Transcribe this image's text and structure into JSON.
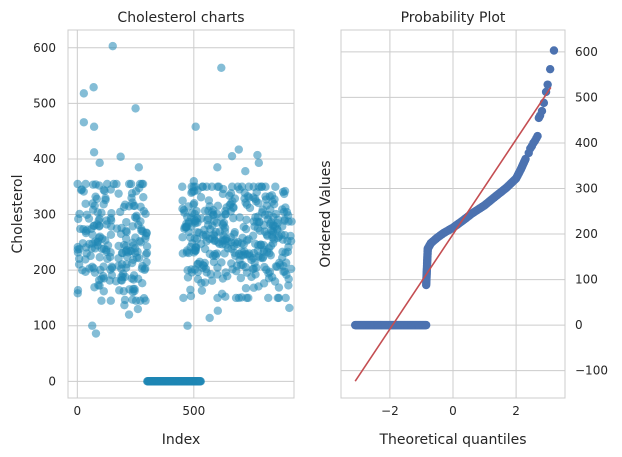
{
  "figure": {
    "background": "#ffffff"
  },
  "chart_data": [
    {
      "type": "scatter",
      "title": "Cholesterol charts",
      "xlabel": "Index",
      "ylabel": "Cholesterol",
      "xlim": [
        -40,
        930
      ],
      "ylim": [
        -30,
        632
      ],
      "xticks": [
        0,
        500
      ],
      "yticks": [
        0,
        100,
        200,
        300,
        400,
        500,
        600
      ],
      "color": "#1f86b4",
      "alpha": 0.55,
      "outliers": [
        {
          "x": 152,
          "y": 603
        },
        {
          "x": 28,
          "y": 518
        },
        {
          "x": 70,
          "y": 529
        },
        {
          "x": 250,
          "y": 491
        },
        {
          "x": 28,
          "y": 466
        },
        {
          "x": 72,
          "y": 458
        },
        {
          "x": 72,
          "y": 412
        },
        {
          "x": 96,
          "y": 393
        },
        {
          "x": 186,
          "y": 404
        },
        {
          "x": 264,
          "y": 385
        },
        {
          "x": 618,
          "y": 564
        },
        {
          "x": 508,
          "y": 458
        },
        {
          "x": 500,
          "y": 360
        },
        {
          "x": 494,
          "y": 341
        },
        {
          "x": 693,
          "y": 417
        },
        {
          "x": 664,
          "y": 405
        },
        {
          "x": 773,
          "y": 407
        },
        {
          "x": 779,
          "y": 393
        },
        {
          "x": 601,
          "y": 385
        },
        {
          "x": 721,
          "y": 378
        },
        {
          "x": 64,
          "y": 100
        },
        {
          "x": 80,
          "y": 86
        },
        {
          "x": 473,
          "y": 100
        },
        {
          "x": 603,
          "y": 127
        },
        {
          "x": 222,
          "y": 120
        },
        {
          "x": 568,
          "y": 114
        },
        {
          "x": 910,
          "y": 132
        },
        {
          "x": 202,
          "y": 137
        },
        {
          "x": 260,
          "y": 130
        }
      ],
      "clusters": [
        {
          "x_range": [
            0,
            300
          ],
          "y_range": [
            160,
            350
          ],
          "count": 210
        },
        {
          "x_range": [
            450,
            920
          ],
          "y_range": [
            165,
            345
          ],
          "count": 360
        }
      ],
      "zero_block": {
        "x_range": [
          300,
          530
        ],
        "y": 0,
        "count": 172
      }
    },
    {
      "type": "scatter",
      "title": "Probability Plot",
      "xlabel": "Theoretical quantiles",
      "ylabel": "Ordered Values",
      "xlim": [
        -3.55,
        3.55
      ],
      "ylim": [
        -160,
        648
      ],
      "xticks": [
        -2,
        0,
        2
      ],
      "yticks": [
        -100,
        0,
        100,
        200,
        300,
        400,
        500,
        600
      ],
      "y_axis_side": "right",
      "point_color": "#4c72b0",
      "line_color": "#c44e52",
      "fit_line": {
        "x": [
          -3.1,
          3.1
        ],
        "y": [
          -123,
          522
        ]
      },
      "zero_segment": {
        "x_range": [
          -3.1,
          -0.85
        ],
        "y": 0
      },
      "curve_knots": [
        [
          -0.85,
          88
        ],
        [
          -0.8,
          168
        ],
        [
          -0.7,
          180
        ],
        [
          -0.5,
          192
        ],
        [
          -0.3,
          202
        ],
        [
          0,
          214
        ],
        [
          0.3,
          229
        ],
        [
          0.6,
          245
        ],
        [
          1.0,
          263
        ],
        [
          1.3,
          280
        ],
        [
          1.7,
          302
        ],
        [
          2.0,
          322
        ],
        [
          2.15,
          342
        ],
        [
          2.3,
          365
        ]
      ],
      "tail_points": [
        [
          2.4,
          378
        ],
        [
          2.45,
          388
        ],
        [
          2.5,
          393
        ],
        [
          2.55,
          400
        ],
        [
          2.6,
          405
        ],
        [
          2.64,
          410
        ],
        [
          2.68,
          415
        ],
        [
          2.72,
          455
        ],
        [
          2.76,
          460
        ],
        [
          2.82,
          470
        ],
        [
          2.88,
          488
        ],
        [
          2.95,
          512
        ],
        [
          3.0,
          528
        ],
        [
          3.08,
          562
        ],
        [
          3.2,
          603
        ]
      ]
    }
  ]
}
